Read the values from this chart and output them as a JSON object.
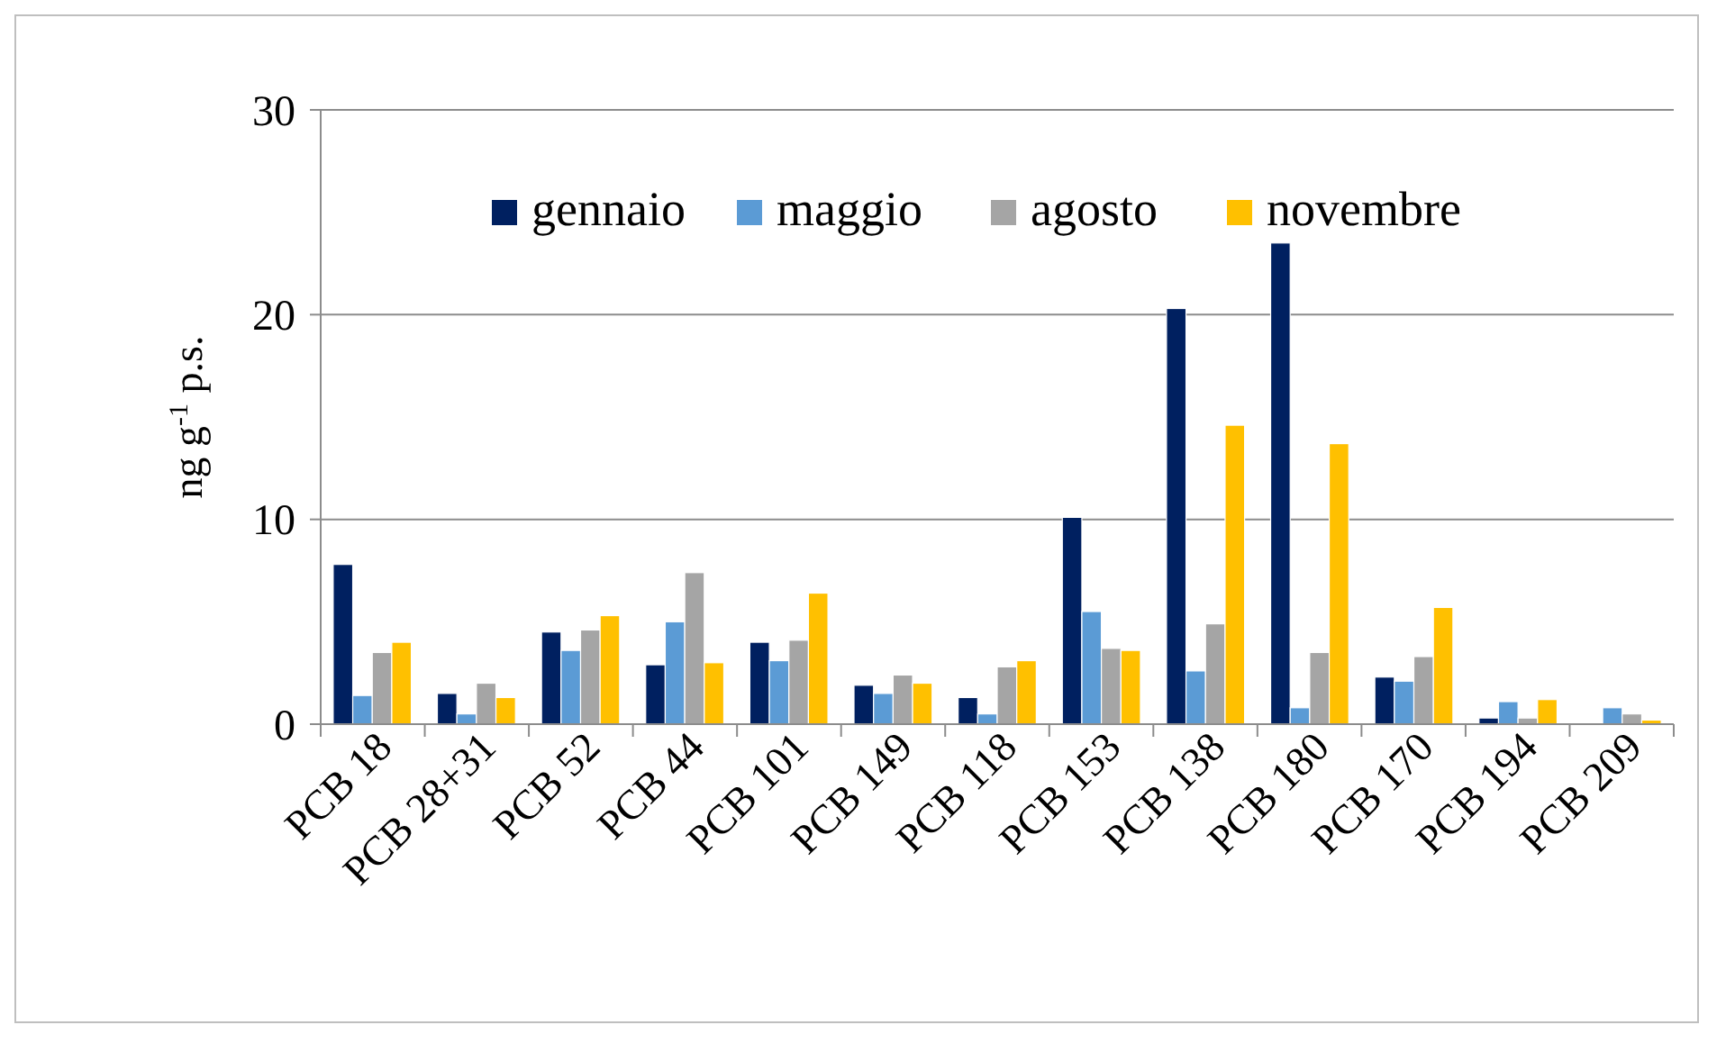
{
  "chart_data": {
    "type": "bar",
    "ylabel": "ng g$^{-1}$ p.s.",
    "categories": [
      "PCB 18",
      "PCB 28+31",
      "PCB 52",
      "PCB 44",
      "PCB 101",
      "PCB 149",
      "PCB 118",
      "PCB 153",
      "PCB 138",
      "PCB 180",
      "PCB 170",
      "PCB 194",
      "PCB 209"
    ],
    "series": [
      {
        "name": "gennaio",
        "color": "#002060",
        "values": [
          7.8,
          1.5,
          4.5,
          2.9,
          4.0,
          1.9,
          1.3,
          10.1,
          20.3,
          23.5,
          2.3,
          0.3,
          0
        ]
      },
      {
        "name": "maggio",
        "color": "#5b9bd5",
        "values": [
          1.4,
          0.5,
          3.6,
          5.0,
          3.1,
          1.5,
          0.5,
          5.5,
          2.6,
          0.8,
          2.1,
          1.1,
          0.8
        ]
      },
      {
        "name": "agosto",
        "color": "#a5a5a5",
        "values": [
          3.5,
          2.0,
          4.6,
          7.4,
          4.1,
          2.4,
          2.8,
          3.7,
          4.9,
          3.5,
          3.3,
          0.3,
          0.5
        ]
      },
      {
        "name": "novembre",
        "color": "#ffc000",
        "values": [
          4.0,
          1.3,
          5.3,
          3.0,
          6.4,
          2.0,
          3.1,
          3.6,
          14.6,
          13.7,
          5.7,
          1.2,
          0.2
        ]
      }
    ],
    "ylim": [
      0,
      30
    ],
    "yticks": [
      0,
      10,
      20,
      30
    ],
    "grid": "y",
    "legend": "top"
  }
}
